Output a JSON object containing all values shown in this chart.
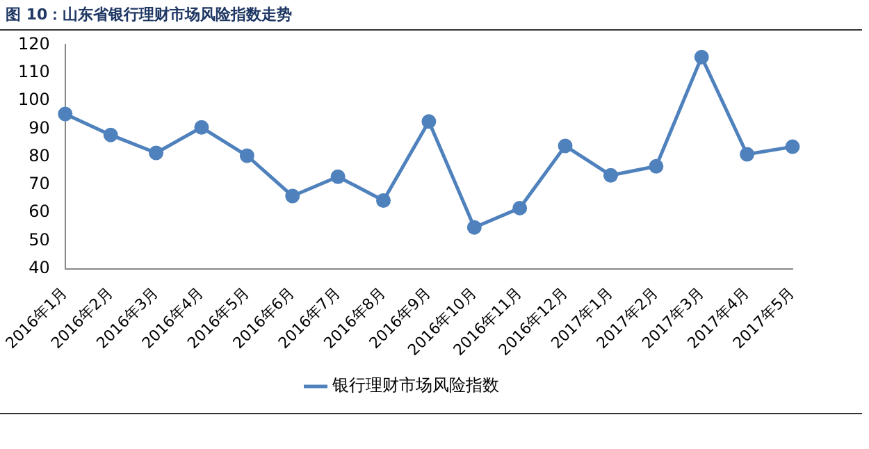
{
  "chart_data": {
    "type": "line",
    "title": "图 10：山东省银行理财市场风险指数走势",
    "categories": [
      "2016年1月",
      "2016年2月",
      "2016年3月",
      "2016年4月",
      "2016年5月",
      "2016年6月",
      "2016年7月",
      "2016年8月",
      "2016年9月",
      "2016年10月",
      "2016年11月",
      "2016年12月",
      "2017年1月",
      "2017年2月",
      "2017年3月",
      "2017年4月",
      "2017年5月"
    ],
    "series": [
      {
        "name": "银行理财市场风险指数",
        "color": "#4f81bd",
        "values": [
          95.3,
          87.8,
          81.4,
          90.5,
          80.4,
          66,
          72.9,
          64.4,
          92.6,
          54.8,
          61.7,
          83.9,
          73.4,
          76.6,
          115.6,
          80.9,
          83.6
        ]
      }
    ],
    "ylim": [
      40,
      120
    ],
    "yticks": [
      40,
      50,
      60,
      70,
      80,
      90,
      100,
      110,
      120
    ],
    "grid": false,
    "legend": "bottom",
    "marker": "circle",
    "line_style": "solid"
  }
}
